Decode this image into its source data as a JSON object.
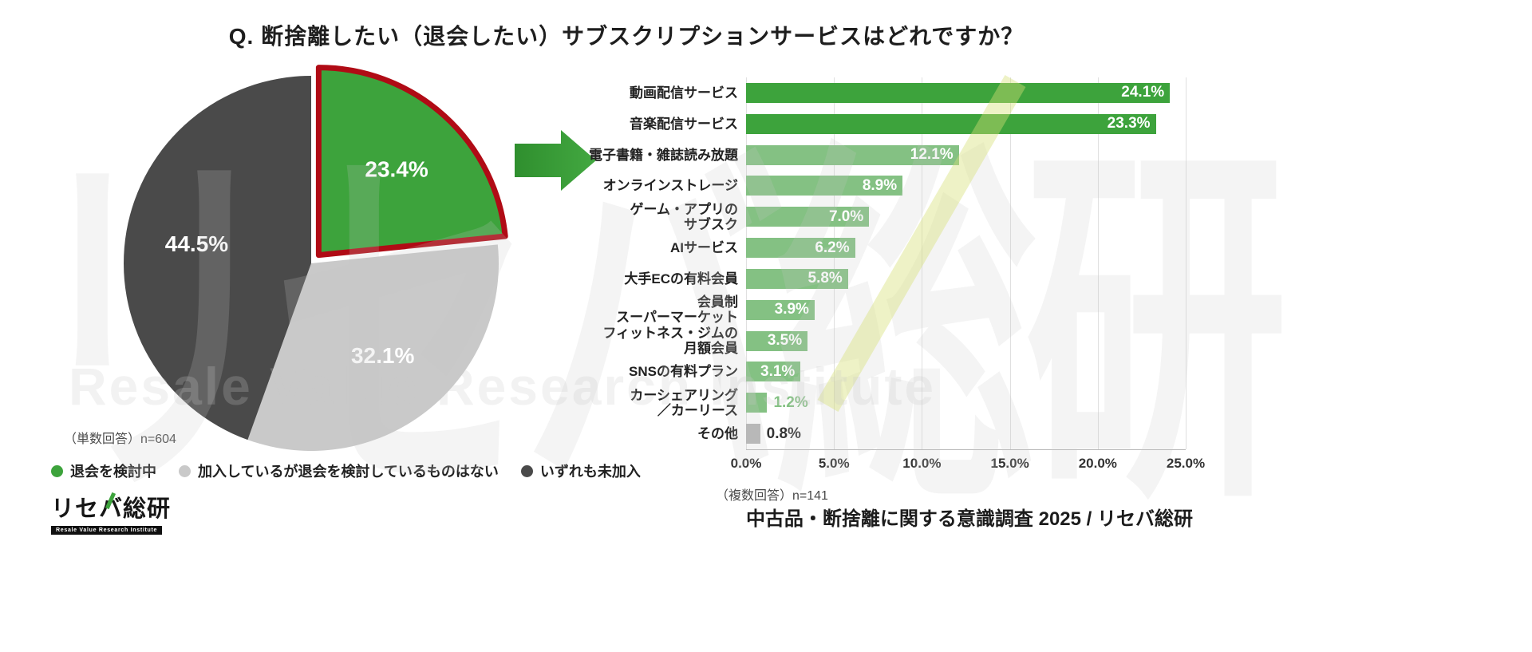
{
  "title": "Q. 断捨離したい（退会したい）サブスクリプションサービスはどれですか？",
  "watermark": {
    "main": "リセバ総研",
    "sub": "Resale Value Research Institute"
  },
  "chart_data": [
    {
      "type": "pie",
      "name": "subscription-cancel-intent-pie",
      "note": "（単数回答）n=604",
      "start_angle_deg": -90,
      "direction": "clockwise",
      "legend_position": "bottom",
      "slices": [
        {
          "label": "退会を検討中",
          "value": 23.4,
          "display": "23.4%",
          "color": "#3da33c",
          "highlighted": true,
          "highlight_color": "#b00b15"
        },
        {
          "label": "加入しているが退会を検討しているものはない",
          "value": 32.1,
          "display": "32.1%",
          "color": "#c9c9c9"
        },
        {
          "label": "いずれも未加入",
          "value": 44.5,
          "display": "44.5%",
          "color": "#4a4a4a"
        }
      ]
    },
    {
      "type": "bar",
      "orientation": "horizontal",
      "name": "services-to-cancel-bar",
      "note": "（複数回答）n=141",
      "xlim": [
        0,
        25
      ],
      "x_ticks": [
        0,
        5,
        10,
        15,
        20,
        25
      ],
      "x_tick_labels": [
        "0.0%",
        "5.0%",
        "10.0%",
        "15.0%",
        "20.0%",
        "25.0%"
      ],
      "grid": true,
      "bars": [
        {
          "label": "動画配信サービス",
          "value": 24.1,
          "display": "24.1%",
          "color": "#3da33c"
        },
        {
          "label": "音楽配信サービス",
          "value": 23.3,
          "display": "23.3%",
          "color": "#3da33c"
        },
        {
          "label": "電子書籍・雑誌読み放題",
          "value": 12.1,
          "display": "12.1%",
          "color": "#84c183"
        },
        {
          "label": "オンラインストレージ",
          "value": 8.9,
          "display": "8.9%",
          "color": "#84c183"
        },
        {
          "label": "ゲーム・アプリの\nサブスク",
          "value": 7.0,
          "display": "7.0%",
          "color": "#84c183"
        },
        {
          "label": "AIサービス",
          "value": 6.2,
          "display": "6.2%",
          "color": "#84c183"
        },
        {
          "label": "大手ECの有料会員",
          "value": 5.8,
          "display": "5.8%",
          "color": "#84c183"
        },
        {
          "label": "会員制\nスーパーマーケット",
          "value": 3.9,
          "display": "3.9%",
          "color": "#84c183"
        },
        {
          "label": "フィットネス・ジムの\n月額会員",
          "value": 3.5,
          "display": "3.5%",
          "color": "#84c183"
        },
        {
          "label": "SNSの有料プラン",
          "value": 3.1,
          "display": "3.1%",
          "color": "#84c183"
        },
        {
          "label": "カーシェアリング\n／カーリース",
          "value": 1.2,
          "display": "1.2%",
          "color": "#84c183",
          "value_label_outside": true
        },
        {
          "label": "その他",
          "value": 0.8,
          "display": "0.8%",
          "color": "#b5b5b5",
          "value_label_outside": true,
          "value_label_color": "#333333"
        }
      ]
    }
  ],
  "colors": {
    "accent_green": "#3da33c",
    "light_green": "#84c183",
    "bar_gray": "#b5b5b5",
    "pie_light_gray": "#c9c9c9",
    "pie_dark_gray": "#4a4a4a",
    "highlight_red": "#b00b15"
  },
  "footer": {
    "logo_text": "リセバ総研",
    "logo_subtext": "Resale Value Research Institute",
    "credit": "中古品・断捨離に関する意識調査 2025 / リセバ総研"
  }
}
